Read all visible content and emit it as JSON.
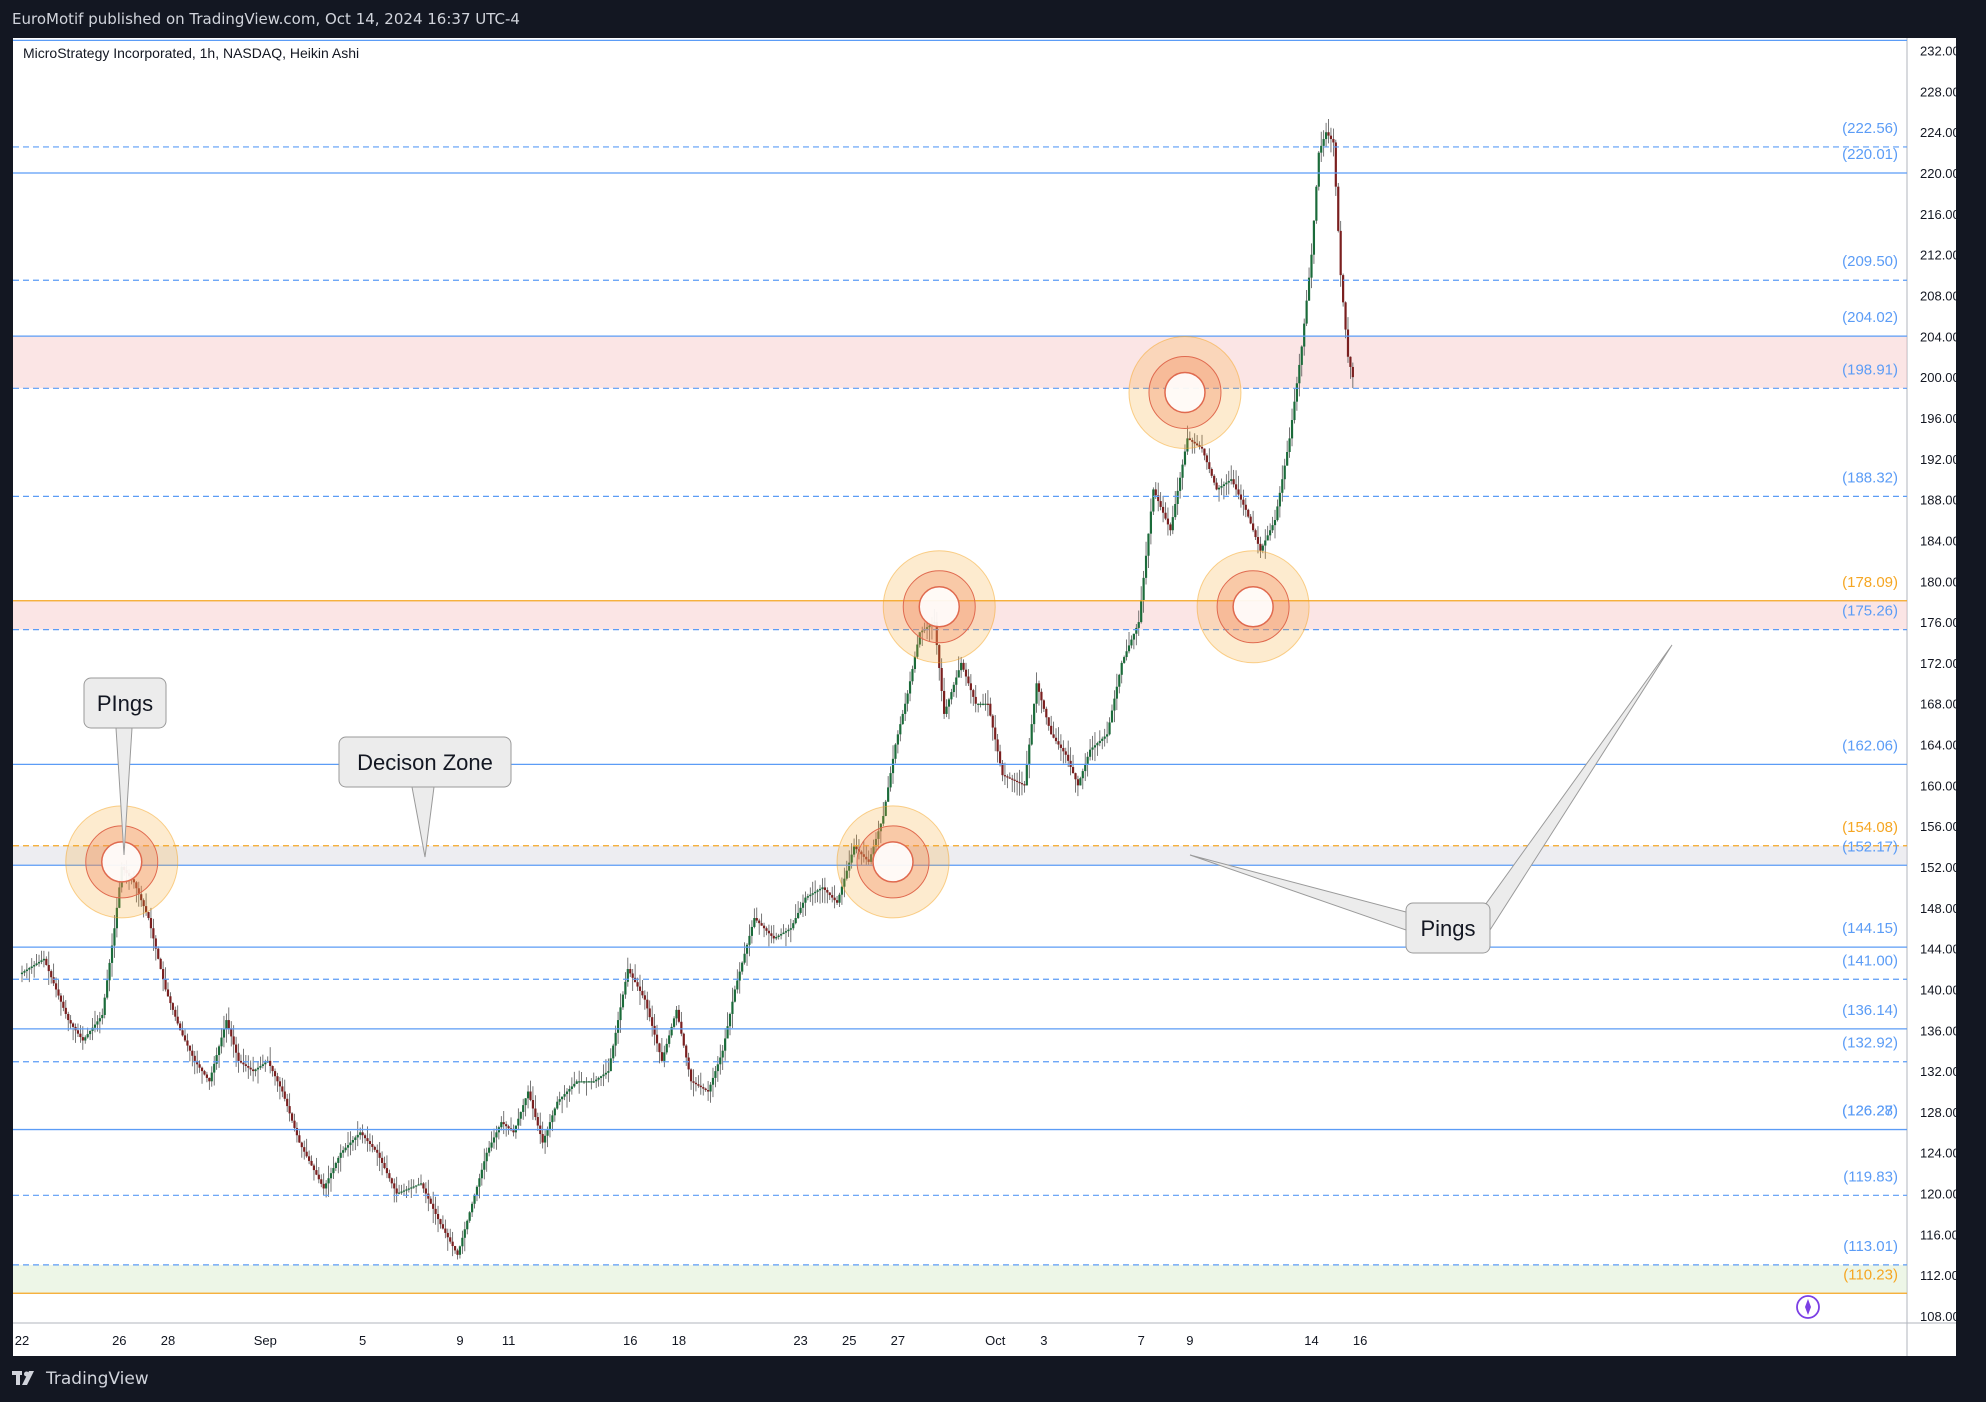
{
  "header": {
    "published_by": "EuroMotif published on TradingView.com, Oct 14, 2024 16:37 UTC-4"
  },
  "footer": {
    "brand": "TradingView",
    "logo_icon": "tradingview-logo-icon"
  },
  "chart_data": {
    "type": "candlestick",
    "title": "MicroStrategy Incorporated, 1h, NASDAQ, Heikin Ashi",
    "ylim": [
      107,
      233
    ],
    "x_ticks": [
      {
        "label": "22",
        "day": 0
      },
      {
        "label": "26",
        "day": 4
      },
      {
        "label": "28",
        "day": 6
      },
      {
        "label": "Sep",
        "day": 10
      },
      {
        "label": "5",
        "day": 14
      },
      {
        "label": "9",
        "day": 18
      },
      {
        "label": "11",
        "day": 20
      },
      {
        "label": "16",
        "day": 25
      },
      {
        "label": "18",
        "day": 27
      },
      {
        "label": "23",
        "day": 32
      },
      {
        "label": "25",
        "day": 34
      },
      {
        "label": "27",
        "day": 36
      },
      {
        "label": "Oct",
        "day": 40
      },
      {
        "label": "3",
        "day": 42
      },
      {
        "label": "7",
        "day": 46
      },
      {
        "label": "9",
        "day": 48
      },
      {
        "label": "14",
        "day": 53
      },
      {
        "label": "16",
        "day": 55
      }
    ],
    "y_ticks": [
      "232.00",
      "228.00",
      "224.00",
      "220.00",
      "216.00",
      "212.00",
      "208.00",
      "204.00",
      "200.00",
      "196.00",
      "192.00",
      "188.00",
      "184.00",
      "180.00",
      "176.00",
      "172.00",
      "168.00",
      "164.00",
      "160.00",
      "156.00",
      "152.00",
      "148.00",
      "144.00",
      "140.00",
      "136.00",
      "132.00",
      "128.00",
      "124.00",
      "120.00",
      "116.00",
      "112.00",
      "108.00"
    ],
    "levels": [
      {
        "value": 233.0,
        "label": "",
        "color": "#5b9cf6",
        "style": "solid"
      },
      {
        "value": 222.56,
        "label": "(222.56)",
        "color": "#5b9cf6",
        "style": "dashed"
      },
      {
        "value": 220.01,
        "label": "(220.01)",
        "color": "#5b9cf6",
        "style": "solid"
      },
      {
        "value": 209.5,
        "label": "(209.50)",
        "color": "#5b9cf6",
        "style": "dashed"
      },
      {
        "value": 204.02,
        "label": "(204.02)",
        "color": "#5b9cf6",
        "style": "solid"
      },
      {
        "value": 198.91,
        "label": "(198.91)",
        "color": "#5b9cf6",
        "style": "dashed"
      },
      {
        "value": 188.32,
        "label": "(188.32)",
        "color": "#5b9cf6",
        "style": "dashed"
      },
      {
        "value": 178.09,
        "label": "(178.09)",
        "color": "#f5a623",
        "style": "solid"
      },
      {
        "value": 175.26,
        "label": "(175.26)",
        "color": "#5b9cf6",
        "style": "dashed"
      },
      {
        "value": 162.06,
        "label": "(162.06)",
        "color": "#5b9cf6",
        "style": "solid"
      },
      {
        "value": 154.08,
        "label": "(154.08)",
        "color": "#f5a623",
        "style": "dashed"
      },
      {
        "value": 152.17,
        "label": "(152.17)",
        "color": "#5b9cf6",
        "style": "solid"
      },
      {
        "value": 144.15,
        "label": "(144.15)",
        "color": "#5b9cf6",
        "style": "solid"
      },
      {
        "value": 141.0,
        "label": "(141.00)",
        "color": "#5b9cf6",
        "style": "dashed"
      },
      {
        "value": 136.14,
        "label": "(136.14)",
        "color": "#5b9cf6",
        "style": "solid"
      },
      {
        "value": 132.92,
        "label": "(132.92)",
        "color": "#5b9cf6",
        "style": "dashed"
      },
      {
        "value": 126.28,
        "label": "(126.28)",
        "color": "#5b9cf6",
        "style": "solid"
      },
      {
        "value": 126.27,
        "label": "(126.27)",
        "color": "#5b9cf6",
        "style": "solid"
      },
      {
        "value": 119.83,
        "label": "(119.83)",
        "color": "#5b9cf6",
        "style": "dashed"
      },
      {
        "value": 113.01,
        "label": "(113.01)",
        "color": "#5b9cf6",
        "style": "dashed"
      },
      {
        "value": 110.23,
        "label": "(110.23)",
        "color": "#f5a623",
        "style": "solid"
      }
    ],
    "zones": [
      {
        "from": 198.91,
        "to": 204.02,
        "color": "#f7c5c5"
      },
      {
        "from": 175.26,
        "to": 178.09,
        "color": "#f7c5c5"
      },
      {
        "from": 152.17,
        "to": 154.08,
        "color": "#d8d8e0"
      },
      {
        "from": 110.23,
        "to": 113.01,
        "color": "#d6ecc9"
      }
    ],
    "price_path": [
      [
        0,
        141.5
      ],
      [
        1,
        143
      ],
      [
        2,
        137
      ],
      [
        2.6,
        135
      ],
      [
        3.4,
        137.5
      ],
      [
        3.9,
        146
      ],
      [
        4.2,
        152
      ],
      [
        4.7,
        150.5
      ],
      [
        5.3,
        147
      ],
      [
        6,
        140
      ],
      [
        6.6,
        136
      ],
      [
        7.2,
        133
      ],
      [
        7.8,
        131
      ],
      [
        8.5,
        137
      ],
      [
        9,
        133
      ],
      [
        9.6,
        132
      ],
      [
        10.2,
        133
      ],
      [
        10.8,
        130
      ],
      [
        11.5,
        125
      ],
      [
        12.5,
        120.5
      ],
      [
        13.2,
        124
      ],
      [
        14,
        126
      ],
      [
        14.7,
        124
      ],
      [
        15.5,
        120
      ],
      [
        16.5,
        121
      ],
      [
        17.3,
        117
      ],
      [
        18,
        114
      ],
      [
        18.6,
        119
      ],
      [
        19.2,
        124
      ],
      [
        19.8,
        127
      ],
      [
        20.3,
        126
      ],
      [
        20.9,
        130
      ],
      [
        21.5,
        125
      ],
      [
        22.1,
        129
      ],
      [
        22.9,
        131
      ],
      [
        23.6,
        131
      ],
      [
        24.2,
        132
      ],
      [
        25,
        142
      ],
      [
        25.7,
        139
      ],
      [
        26.4,
        133
      ],
      [
        27,
        138
      ],
      [
        27.6,
        131
      ],
      [
        28.3,
        130
      ],
      [
        28.9,
        134
      ],
      [
        29.4,
        140
      ],
      [
        30.2,
        147
      ],
      [
        31,
        145
      ],
      [
        31.7,
        146
      ],
      [
        32.3,
        149
      ],
      [
        33,
        150
      ],
      [
        33.6,
        148.5
      ],
      [
        34.3,
        154
      ],
      [
        34.9,
        152.5
      ],
      [
        35.5,
        157
      ],
      [
        36,
        164
      ],
      [
        36.5,
        169
      ],
      [
        37,
        175
      ],
      [
        37.6,
        176
      ],
      [
        38,
        167
      ],
      [
        38.7,
        172
      ],
      [
        39.3,
        168
      ],
      [
        39.8,
        168
      ],
      [
        40.4,
        161
      ],
      [
        41.3,
        160
      ],
      [
        41.8,
        170
      ],
      [
        42.4,
        165
      ],
      [
        43,
        163
      ],
      [
        43.5,
        160
      ],
      [
        44,
        163.5
      ],
      [
        44.7,
        165
      ],
      [
        45.3,
        172
      ],
      [
        46,
        176
      ],
      [
        46.6,
        189
      ],
      [
        47.3,
        185
      ],
      [
        48,
        194
      ],
      [
        48.6,
        193
      ],
      [
        49.2,
        189
      ],
      [
        49.8,
        190
      ],
      [
        50.4,
        187
      ],
      [
        51,
        183
      ],
      [
        51.6,
        186
      ],
      [
        52.2,
        194
      ],
      [
        52.7,
        203
      ],
      [
        53.1,
        212
      ],
      [
        53.4,
        222
      ],
      [
        53.7,
        224
      ],
      [
        54,
        223
      ],
      [
        54.3,
        210
      ],
      [
        54.6,
        202
      ],
      [
        54.8,
        200
      ]
    ],
    "annotations": [
      {
        "text": "PIngs",
        "type": "callout"
      },
      {
        "text": "Decison Zone",
        "type": "callout"
      },
      {
        "text": "Pings",
        "type": "callout"
      }
    ],
    "marker_days": [
      4.1,
      35.8,
      37.7,
      47.8,
      50.6
    ],
    "marker_prices": [
      152.5,
      152.5,
      177.5,
      198.5,
      177.5
    ]
  }
}
